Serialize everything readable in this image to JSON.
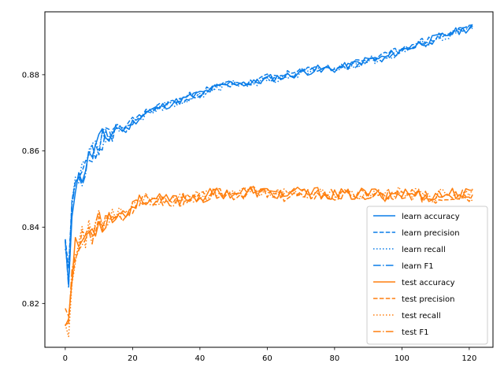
{
  "chart_data": {
    "type": "line",
    "title": "",
    "xlabel": "",
    "ylabel": "",
    "xlim": [
      -6.05,
      127.05
    ],
    "ylim": [
      0.8085,
      0.8965
    ],
    "xticks": [
      0,
      20,
      40,
      60,
      80,
      100,
      120
    ],
    "yticks": [
      0.82,
      0.84,
      0.86,
      0.88
    ],
    "ytick_labels": [
      "0.82",
      "0.84",
      "0.86",
      "0.88"
    ],
    "grid": false,
    "legend_position": "lower-right",
    "colors": {
      "learn": "#1f77b4",
      "test": "#ff7f0e",
      "learn_display": "#0a7de8",
      "test_display": "#ff7f0e"
    },
    "anchors": {
      "learn": {
        "x": [
          0,
          1,
          2,
          3,
          5,
          8,
          10,
          13,
          15,
          18,
          20,
          25,
          30,
          35,
          40,
          45,
          50,
          55,
          60,
          65,
          70,
          75,
          80,
          85,
          90,
          95,
          100,
          105,
          110,
          115,
          121
        ],
        "y": [
          0.8335,
          0.8265,
          0.8455,
          0.851,
          0.854,
          0.8595,
          0.862,
          0.864,
          0.866,
          0.8655,
          0.8675,
          0.8705,
          0.872,
          0.8735,
          0.875,
          0.8765,
          0.878,
          0.8775,
          0.879,
          0.8795,
          0.8805,
          0.8815,
          0.8815,
          0.8825,
          0.884,
          0.8845,
          0.8865,
          0.888,
          0.8895,
          0.891,
          0.8925
        ]
      },
      "test": {
        "x": [
          0,
          1,
          2,
          3,
          5,
          8,
          10,
          13,
          15,
          18,
          20,
          22,
          25,
          30,
          35,
          40,
          45,
          50,
          55,
          60,
          65,
          70,
          75,
          80,
          85,
          90,
          95,
          100,
          105,
          110,
          115,
          121
        ],
        "y": [
          0.8175,
          0.8145,
          0.8285,
          0.834,
          0.837,
          0.839,
          0.8415,
          0.8425,
          0.8435,
          0.8435,
          0.8455,
          0.847,
          0.8475,
          0.847,
          0.8475,
          0.848,
          0.849,
          0.849,
          0.8495,
          0.849,
          0.8485,
          0.849,
          0.849,
          0.8485,
          0.8485,
          0.849,
          0.8485,
          0.849,
          0.8485,
          0.848,
          0.849,
          0.8485
        ]
      }
    },
    "series": [
      {
        "name": "learn accuracy",
        "group": "learn",
        "style": "solid",
        "offset": 0.0,
        "seed": 11
      },
      {
        "name": "learn precision",
        "group": "learn",
        "style": "dashed",
        "offset": 0.0003,
        "seed": 23
      },
      {
        "name": "learn recall",
        "group": "learn",
        "style": "dotted",
        "offset": -0.0002,
        "seed": 37
      },
      {
        "name": "learn F1",
        "group": "learn",
        "style": "dashdot",
        "offset": -0.0001,
        "seed": 41
      },
      {
        "name": "test accuracy",
        "group": "test",
        "style": "solid",
        "offset": 0.0,
        "seed": 53
      },
      {
        "name": "test precision",
        "group": "test",
        "style": "dashed",
        "offset": -0.0003,
        "seed": 67
      },
      {
        "name": "test recall",
        "group": "test",
        "style": "dotted",
        "offset": 0.0001,
        "seed": 71
      },
      {
        "name": "test F1",
        "group": "test",
        "style": "dashdot",
        "offset": -0.0002,
        "seed": 83
      }
    ]
  }
}
